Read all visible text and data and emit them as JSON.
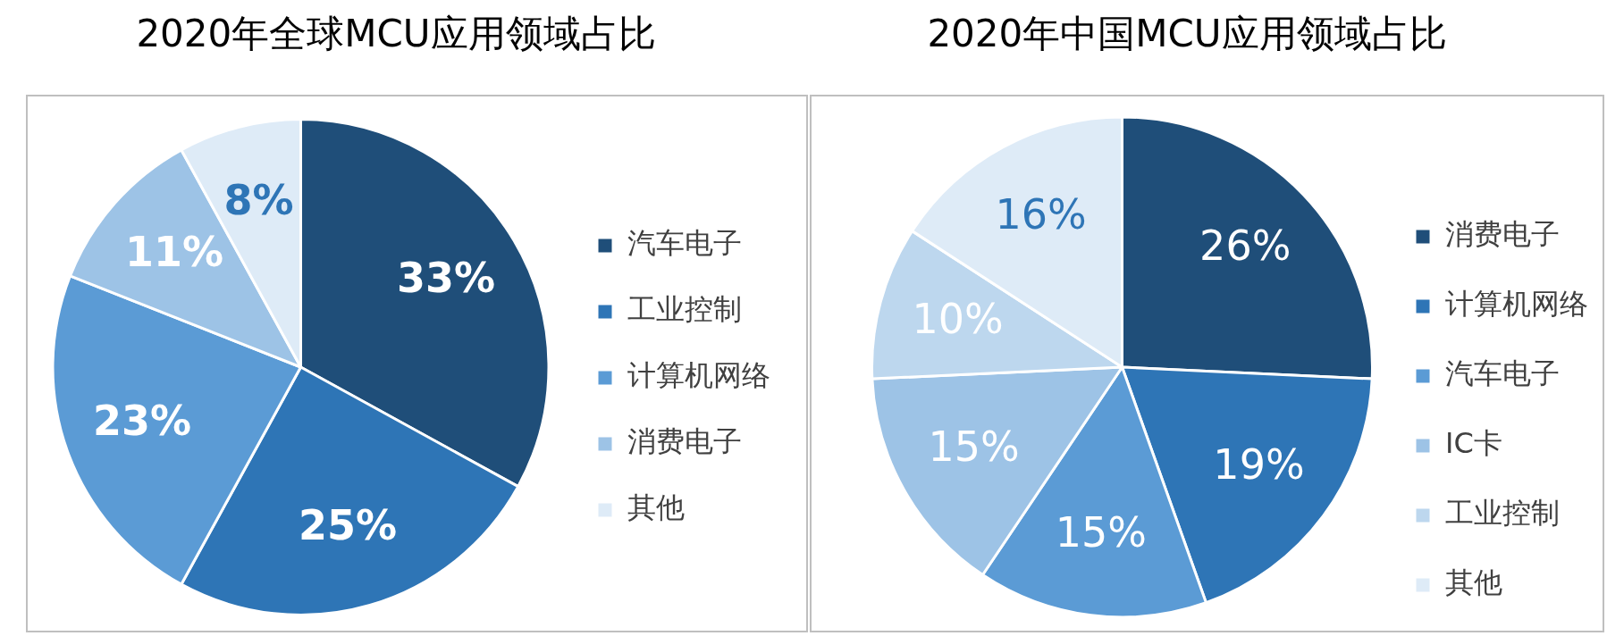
{
  "chart_data": [
    {
      "type": "pie",
      "title": "2020年全球MCU应用领域占比",
      "categories": [
        "汽车电子",
        "工业控制",
        "计算机网络",
        "消费电子",
        "其他"
      ],
      "values": [
        33,
        25,
        23,
        11,
        8
      ],
      "colors": [
        "#1f4e79",
        "#2e75b6",
        "#5b9bd5",
        "#9dc3e6",
        "#deebf7"
      ],
      "value_labels": [
        "33%",
        "25%",
        "23%",
        "11%",
        "8%"
      ],
      "legend": "right"
    },
    {
      "type": "pie",
      "title": "2020年中国MCU应用领域占比",
      "categories": [
        "消费电子",
        "计算机网络",
        "汽车电子",
        "IC卡",
        "工业控制",
        "其他"
      ],
      "values": [
        26,
        19,
        15,
        15,
        10,
        16
      ],
      "colors": [
        "#1f4e79",
        "#2e75b6",
        "#5b9bd5",
        "#9dc3e6",
        "#bdd7ee",
        "#deebf7"
      ],
      "value_labels": [
        "26%",
        "19%",
        "15%",
        "15%",
        "10%",
        "16%"
      ],
      "legend": "right"
    }
  ]
}
